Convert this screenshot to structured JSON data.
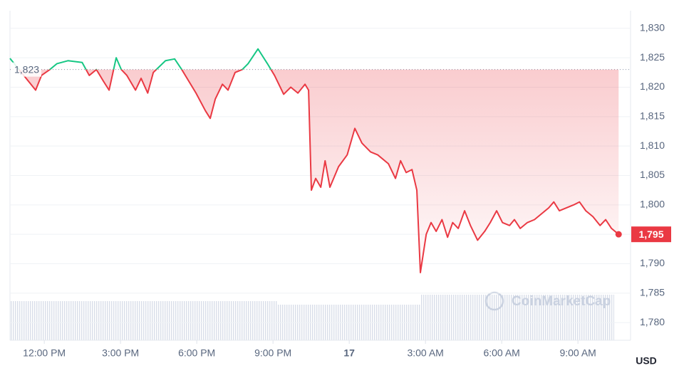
{
  "chart_data": {
    "type": "line",
    "x": [
      10.65,
      11.38,
      11.66,
      11.89,
      12.22,
      12.5,
      12.93,
      13.49,
      13.77,
      14.05,
      14.33,
      14.55,
      14.83,
      15.03,
      15.25,
      15.59,
      15.81,
      16.07,
      16.29,
      16.77,
      17.13,
      17.41,
      17.69,
      17.97,
      18.34,
      18.53,
      18.73,
      19.01,
      19.23,
      19.51,
      19.79,
      20.02,
      20.41,
      20.78,
      21.06,
      21.42,
      21.7,
      21.98,
      22.26,
      22.4,
      22.51,
      22.68,
      22.88,
      23.05,
      23.24,
      23.58,
      23.92,
      24.22,
      24.5,
      24.84,
      25.12,
      25.54,
      25.82,
      26.02,
      26.24,
      26.47,
      26.66,
      26.8,
      27.03,
      27.22,
      27.42,
      27.65,
      27.87,
      28.07,
      28.29,
      28.54,
      28.77,
      29.05,
      29.33,
      29.55,
      29.8,
      30.03,
      30.31,
      30.5,
      30.73,
      31.01,
      31.29,
      31.57,
      31.85,
      32.05,
      32.27,
      32.55,
      32.83,
      33.06,
      33.31,
      33.59,
      33.87,
      34.09,
      34.32,
      34.6
    ],
    "series": [
      {
        "name": "USD",
        "color": "#ea3943",
        "above_color": "#16c784",
        "values": [
          1824.9,
          1821,
          1819.5,
          1822,
          1823,
          1824,
          1824.5,
          1824.2,
          1822,
          1823,
          1821,
          1819.5,
          1825,
          1823,
          1822,
          1819.5,
          1821.5,
          1819,
          1822.5,
          1824.5,
          1824.8,
          1823,
          1821,
          1819,
          1816,
          1814.7,
          1818,
          1820.5,
          1819.5,
          1822.5,
          1823,
          1824,
          1826.5,
          1824,
          1822,
          1818.8,
          1820,
          1819,
          1820.5,
          1819.5,
          1802.5,
          1804.5,
          1803,
          1807.5,
          1803,
          1806.5,
          1808.5,
          1813,
          1810.5,
          1809,
          1808.5,
          1807,
          1804.5,
          1807.5,
          1805.5,
          1806,
          1802.5,
          1788.5,
          1795,
          1797,
          1795.5,
          1797.5,
          1794.5,
          1797,
          1796,
          1799,
          1796.5,
          1794,
          1795.5,
          1797,
          1799,
          1797,
          1796.5,
          1797.5,
          1796,
          1797,
          1797.5,
          1798.5,
          1799.5,
          1800.5,
          1799,
          1799.5,
          1800,
          1800.5,
          1799,
          1798,
          1796.5,
          1797.5,
          1796,
          1795
        ]
      }
    ],
    "xlim": [
      10.65,
      35.07
    ],
    "xticks": [
      {
        "value": 12,
        "label": "12:00 PM"
      },
      {
        "value": 15,
        "label": "3:00 PM"
      },
      {
        "value": 18,
        "label": "6:00 PM"
      },
      {
        "value": 21,
        "label": "9:00 PM"
      },
      {
        "value": 24,
        "label": "17"
      },
      {
        "value": 27,
        "label": "3:00 AM"
      },
      {
        "value": 30,
        "label": "6:00 AM"
      },
      {
        "value": 33,
        "label": "9:00 AM"
      }
    ],
    "ylim": [
      1777,
      1833
    ],
    "yticks": [
      {
        "value": 1780,
        "label": "1,780"
      },
      {
        "value": 1785,
        "label": "1,785"
      },
      {
        "value": 1790,
        "label": "1,790"
      },
      {
        "value": 1795,
        "label": "1,795"
      },
      {
        "value": 1800,
        "label": "1,800"
      },
      {
        "value": 1805,
        "label": "1,805"
      },
      {
        "value": 1810,
        "label": "1,810"
      },
      {
        "value": 1815,
        "label": "1,815"
      },
      {
        "value": 1820,
        "label": "1,820"
      },
      {
        "value": 1825,
        "label": "1,825"
      },
      {
        "value": 1830,
        "label": "1,830"
      }
    ],
    "reference": {
      "value": 1823,
      "label": "1,823"
    },
    "current_label": "1,795",
    "currency": "USD",
    "watermark": "CoinMarketCap",
    "grid": true
  }
}
